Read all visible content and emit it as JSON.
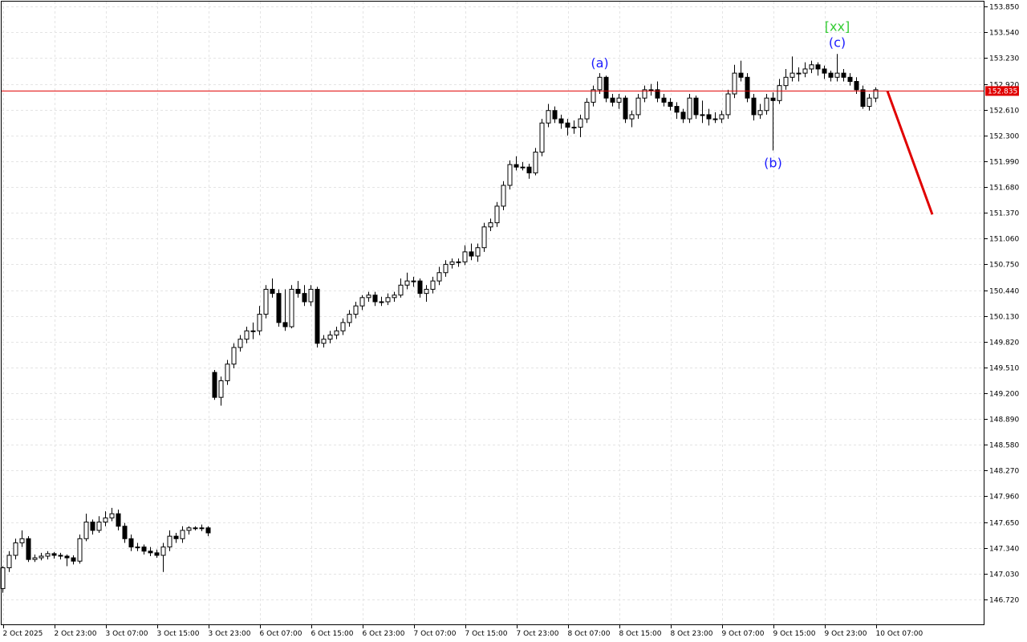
{
  "chart_data": {
    "type": "candlestick",
    "ylim": [
      146.41,
      153.92
    ],
    "yticks": [
      {
        "value": 146.72,
        "label": "146.720"
      },
      {
        "value": 147.03,
        "label": "147.030"
      },
      {
        "value": 147.34,
        "label": "147.340"
      },
      {
        "value": 147.65,
        "label": "147.650"
      },
      {
        "value": 147.96,
        "label": "147.960"
      },
      {
        "value": 148.27,
        "label": "148.270"
      },
      {
        "value": 148.58,
        "label": "148.580"
      },
      {
        "value": 148.89,
        "label": "148.890"
      },
      {
        "value": 149.2,
        "label": "149.200"
      },
      {
        "value": 149.51,
        "label": "149.510"
      },
      {
        "value": 149.82,
        "label": "149.820"
      },
      {
        "value": 150.13,
        "label": "150.130"
      },
      {
        "value": 150.44,
        "label": "150.440"
      },
      {
        "value": 150.75,
        "label": "150.750"
      },
      {
        "value": 151.06,
        "label": "151.060"
      },
      {
        "value": 151.37,
        "label": "151.370"
      },
      {
        "value": 151.68,
        "label": "151.680"
      },
      {
        "value": 151.99,
        "label": "151.990"
      },
      {
        "value": 152.3,
        "label": "152.300"
      },
      {
        "value": 152.61,
        "label": "152.610"
      },
      {
        "value": 152.92,
        "label": "152.920"
      },
      {
        "value": 153.23,
        "label": "153.230"
      },
      {
        "value": 153.54,
        "label": "153.540"
      },
      {
        "value": 153.85,
        "label": "153.850"
      }
    ],
    "xticks": [
      "2 Oct 2025",
      "2 Oct 23:00",
      "3 Oct 07:00",
      "3 Oct 15:00",
      "3 Oct 23:00",
      "6 Oct 07:00",
      "6 Oct 15:00",
      "6 Oct 23:00",
      "7 Oct 07:00",
      "7 Oct 15:00",
      "7 Oct 23:00",
      "8 Oct 07:00",
      "8 Oct 15:00",
      "8 Oct 23:00",
      "9 Oct 07:00",
      "9 Oct 15:00",
      "9 Oct 23:00",
      "10 Oct 07:00"
    ],
    "grid": true,
    "current_price": 152.835,
    "current_price_color": "#e00000",
    "forecast": {
      "values": [
        152.835,
        151.35
      ],
      "color": "#e00000"
    },
    "annotations": [
      {
        "text": "(a)",
        "color": "#1a1aff"
      },
      {
        "text": "(b)",
        "color": "#1a1aff"
      },
      {
        "text": "(c)",
        "color": "#1a1aff"
      },
      {
        "text": "[xx]",
        "color": "#33cc33"
      }
    ],
    "candles": [
      [
        146.85,
        147.12,
        146.8,
        147.1
      ],
      [
        147.1,
        147.3,
        147.05,
        147.25
      ],
      [
        147.25,
        147.45,
        147.2,
        147.4
      ],
      [
        147.4,
        147.55,
        147.35,
        147.45
      ],
      [
        147.45,
        147.48,
        147.17,
        147.2
      ],
      [
        147.2,
        147.26,
        147.17,
        147.22
      ],
      [
        147.22,
        147.28,
        147.19,
        147.24
      ],
      [
        147.24,
        147.3,
        147.2,
        147.27
      ],
      [
        147.27,
        147.29,
        147.21,
        147.25
      ],
      [
        147.25,
        147.28,
        147.2,
        147.24
      ],
      [
        147.24,
        147.26,
        147.12,
        147.22
      ],
      [
        147.22,
        147.25,
        147.14,
        147.18
      ],
      [
        147.18,
        147.5,
        147.15,
        147.45
      ],
      [
        147.45,
        147.75,
        147.42,
        147.65
      ],
      [
        147.65,
        147.68,
        147.5,
        147.55
      ],
      [
        147.55,
        147.72,
        147.52,
        147.65
      ],
      [
        147.65,
        147.78,
        147.6,
        147.7
      ],
      [
        147.7,
        147.82,
        147.66,
        147.75
      ],
      [
        147.75,
        147.8,
        147.55,
        147.6
      ],
      [
        147.6,
        147.64,
        147.4,
        147.45
      ],
      [
        147.45,
        147.5,
        147.3,
        147.35
      ],
      [
        147.35,
        147.4,
        147.3,
        147.35
      ],
      [
        147.35,
        147.38,
        147.26,
        147.3
      ],
      [
        147.3,
        147.35,
        147.24,
        147.28
      ],
      [
        147.28,
        147.32,
        147.22,
        147.25
      ],
      [
        147.25,
        147.4,
        147.05,
        147.35
      ],
      [
        147.35,
        147.55,
        147.3,
        147.48
      ],
      [
        147.48,
        147.52,
        147.4,
        147.45
      ],
      [
        147.45,
        147.6,
        147.4,
        147.55
      ],
      [
        147.55,
        147.6,
        147.5,
        147.58
      ],
      [
        147.58,
        147.6,
        147.55,
        147.58
      ],
      [
        147.58,
        147.62,
        147.54,
        147.58
      ],
      [
        147.58,
        147.6,
        147.48,
        147.52
      ],
      [
        149.45,
        149.48,
        149.12,
        149.15
      ],
      [
        149.15,
        149.4,
        149.05,
        149.35
      ],
      [
        149.35,
        149.6,
        149.3,
        149.55
      ],
      [
        149.55,
        149.8,
        149.5,
        149.75
      ],
      [
        149.75,
        149.9,
        149.7,
        149.85
      ],
      [
        149.85,
        150.0,
        149.8,
        149.95
      ],
      [
        149.95,
        150.05,
        149.85,
        149.95
      ],
      [
        149.95,
        150.25,
        149.9,
        150.15
      ],
      [
        150.15,
        150.5,
        150.1,
        150.45
      ],
      [
        150.45,
        150.58,
        150.35,
        150.4
      ],
      [
        150.4,
        150.45,
        150.0,
        150.05
      ],
      [
        150.05,
        150.45,
        149.95,
        150.0
      ],
      [
        150.0,
        150.5,
        149.98,
        150.45
      ],
      [
        150.45,
        150.55,
        150.35,
        150.4
      ],
      [
        150.4,
        150.5,
        150.25,
        150.3
      ],
      [
        150.3,
        150.5,
        150.25,
        150.45
      ],
      [
        150.45,
        150.48,
        149.75,
        149.8
      ],
      [
        149.8,
        149.9,
        149.75,
        149.85
      ],
      [
        149.85,
        149.95,
        149.8,
        149.9
      ],
      [
        149.9,
        150.0,
        149.85,
        149.95
      ],
      [
        149.95,
        150.1,
        149.9,
        150.05
      ],
      [
        150.05,
        150.2,
        150.0,
        150.15
      ],
      [
        150.15,
        150.3,
        150.1,
        150.25
      ],
      [
        150.25,
        150.38,
        150.2,
        150.35
      ],
      [
        150.35,
        150.42,
        150.3,
        150.38
      ],
      [
        150.38,
        150.42,
        150.25,
        150.3
      ],
      [
        150.3,
        150.36,
        150.25,
        150.3
      ],
      [
        150.3,
        150.4,
        150.26,
        150.35
      ],
      [
        150.35,
        150.42,
        150.3,
        150.38
      ],
      [
        150.38,
        150.58,
        150.35,
        150.5
      ],
      [
        150.5,
        150.65,
        150.45,
        150.55
      ],
      [
        150.55,
        150.6,
        150.48,
        150.55
      ],
      [
        150.55,
        150.58,
        150.35,
        150.4
      ],
      [
        150.4,
        150.5,
        150.3,
        150.45
      ],
      [
        150.45,
        150.6,
        150.4,
        150.55
      ],
      [
        150.55,
        150.72,
        150.5,
        150.65
      ],
      [
        150.65,
        150.8,
        150.6,
        150.75
      ],
      [
        150.75,
        150.82,
        150.7,
        150.78
      ],
      [
        150.78,
        150.82,
        150.72,
        150.78
      ],
      [
        150.78,
        150.98,
        150.74,
        150.9
      ],
      [
        150.9,
        151.0,
        150.8,
        150.85
      ],
      [
        150.85,
        151.0,
        150.78,
        150.95
      ],
      [
        150.95,
        151.25,
        150.9,
        151.2
      ],
      [
        151.2,
        151.3,
        151.15,
        151.25
      ],
      [
        151.25,
        151.5,
        151.2,
        151.45
      ],
      [
        151.45,
        151.75,
        151.4,
        151.7
      ],
      [
        151.7,
        152.0,
        151.65,
        151.95
      ],
      [
        151.95,
        152.05,
        151.88,
        151.92
      ],
      [
        151.92,
        151.98,
        151.88,
        151.92
      ],
      [
        151.92,
        151.96,
        151.78,
        151.85
      ],
      [
        151.85,
        152.15,
        151.82,
        152.1
      ],
      [
        152.1,
        152.5,
        152.05,
        152.45
      ],
      [
        152.45,
        152.68,
        152.4,
        152.6
      ],
      [
        152.6,
        152.65,
        152.45,
        152.5
      ],
      [
        152.5,
        152.55,
        152.38,
        152.45
      ],
      [
        152.45,
        152.5,
        152.3,
        152.4
      ],
      [
        152.4,
        152.48,
        152.32,
        152.4
      ],
      [
        152.4,
        152.55,
        152.28,
        152.5
      ],
      [
        152.5,
        152.75,
        152.45,
        152.7
      ],
      [
        152.7,
        152.9,
        152.65,
        152.85
      ],
      [
        152.85,
        153.05,
        152.8,
        153.0
      ],
      [
        153.0,
        153.02,
        152.7,
        152.75
      ],
      [
        152.75,
        152.8,
        152.65,
        152.7
      ],
      [
        152.7,
        152.8,
        152.62,
        152.75
      ],
      [
        152.75,
        152.78,
        152.45,
        152.5
      ],
      [
        152.5,
        152.6,
        152.4,
        152.55
      ],
      [
        152.55,
        152.8,
        152.5,
        152.75
      ],
      [
        152.75,
        152.9,
        152.7,
        152.85
      ],
      [
        152.85,
        152.92,
        152.78,
        152.85
      ],
      [
        152.85,
        152.95,
        152.7,
        152.75
      ],
      [
        152.75,
        152.8,
        152.65,
        152.7
      ],
      [
        152.7,
        152.75,
        152.6,
        152.65
      ],
      [
        152.65,
        152.7,
        152.5,
        152.58
      ],
      [
        152.58,
        152.62,
        152.45,
        152.5
      ],
      [
        152.5,
        152.8,
        152.45,
        152.75
      ],
      [
        152.75,
        152.78,
        152.5,
        152.55
      ],
      [
        152.55,
        152.72,
        152.45,
        152.55
      ],
      [
        152.55,
        152.62,
        152.42,
        152.5
      ],
      [
        152.5,
        152.58,
        152.45,
        152.5
      ],
      [
        152.5,
        152.6,
        152.45,
        152.55
      ],
      [
        152.55,
        152.85,
        152.5,
        152.8
      ],
      [
        152.8,
        153.15,
        152.75,
        153.05
      ],
      [
        153.05,
        153.2,
        152.95,
        153.0
      ],
      [
        153.0,
        153.05,
        152.7,
        152.75
      ],
      [
        152.75,
        152.8,
        152.48,
        152.55
      ],
      [
        152.55,
        152.68,
        152.5,
        152.6
      ],
      [
        152.6,
        152.8,
        152.55,
        152.75
      ],
      [
        152.75,
        152.82,
        152.12,
        152.72
      ],
      [
        152.72,
        152.98,
        152.68,
        152.9
      ],
      [
        152.9,
        153.1,
        152.85,
        153.0
      ],
      [
        153.0,
        153.25,
        152.95,
        153.05
      ],
      [
        153.05,
        153.12,
        152.95,
        153.05
      ],
      [
        153.05,
        153.18,
        153.0,
        153.1
      ],
      [
        153.1,
        153.2,
        153.05,
        153.15
      ],
      [
        153.15,
        153.18,
        153.02,
        153.1
      ],
      [
        153.1,
        153.14,
        152.98,
        153.05
      ],
      [
        153.05,
        153.08,
        152.95,
        153.0
      ],
      [
        153.0,
        153.28,
        152.95,
        153.05
      ],
      [
        153.05,
        153.1,
        152.95,
        153.0
      ],
      [
        153.0,
        153.05,
        152.9,
        152.95
      ],
      [
        152.95,
        153.0,
        152.8,
        152.85
      ],
      [
        152.85,
        152.9,
        152.62,
        152.65
      ],
      [
        152.65,
        152.8,
        152.6,
        152.75
      ],
      [
        152.75,
        152.88,
        152.7,
        152.85
      ]
    ]
  }
}
